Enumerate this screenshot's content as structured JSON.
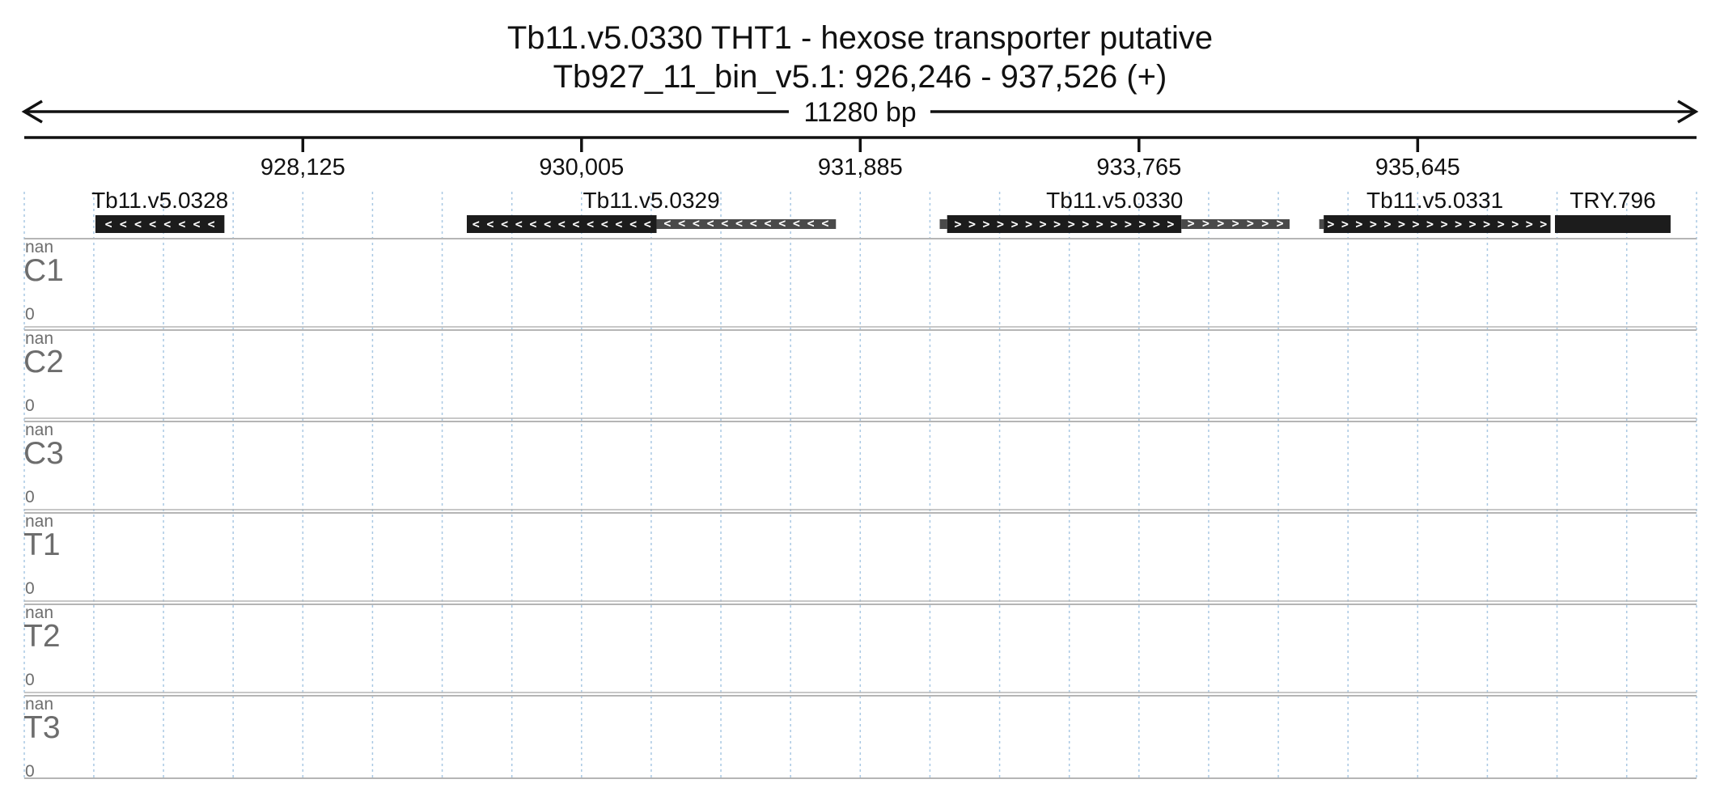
{
  "header": {
    "title": "Tb11.v5.0330  THT1 - hexose transporter  putative",
    "location": "Tb927_11_bin_v5.1: 926,246 - 937,526 (+)",
    "span_label": "11280 bp"
  },
  "chart_data": {
    "type": "genome-browser",
    "region": {
      "chrom": "Tb927_11_bin_v5.1",
      "start": 926246,
      "end": 937526,
      "strand": "+"
    },
    "axis": {
      "ticks": [
        928125,
        930005,
        931885,
        933765,
        935645
      ],
      "tick_labels": [
        "928,125",
        "930,005",
        "931,885",
        "933,765",
        "935,645"
      ]
    },
    "grid": true,
    "genes": [
      {
        "name": "Tb11.v5.0328",
        "strand": "-",
        "start": 926726,
        "end": 927596,
        "cds_start": 926726,
        "cds_end": 927596
      },
      {
        "name": "Tb11.v5.0329",
        "strand": "-",
        "start": 929231,
        "end": 931721,
        "cds_start": 929231,
        "cds_end": 930511
      },
      {
        "name": "Tb11.v5.0330",
        "strand": "+",
        "start": 932421,
        "end": 934781,
        "cds_start": 932471,
        "cds_end": 934051
      },
      {
        "name": "Tb11.v5.0331",
        "strand": "+",
        "start": 934981,
        "end": 936541,
        "cds_start": 935011,
        "cds_end": 936541
      },
      {
        "name": "TRY.796",
        "strand": "none",
        "start": 936571,
        "end": 937351,
        "cds_start": 936571,
        "cds_end": 937351
      }
    ],
    "tracks": [
      {
        "name": "C1",
        "max": "nan",
        "min": "0"
      },
      {
        "name": "C2",
        "max": "nan",
        "min": "0"
      },
      {
        "name": "C3",
        "max": "nan",
        "min": "0"
      },
      {
        "name": "T1",
        "max": "nan",
        "min": "0"
      },
      {
        "name": "T2",
        "max": "nan",
        "min": "0"
      },
      {
        "name": "T3",
        "max": "nan",
        "min": "0"
      }
    ]
  },
  "colors": {
    "cds": "#1c1c1c",
    "utr": "#4a4a4a",
    "grid": "#a9c8e3",
    "separator": "#b5b5b5",
    "track_label": "#6d6d6d"
  }
}
